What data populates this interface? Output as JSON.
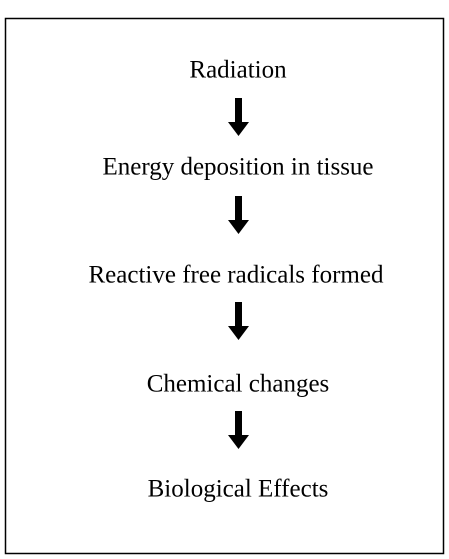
{
  "nodes": [
    {
      "label": "Radiation"
    },
    {
      "label": "Energy deposition in tissue"
    },
    {
      "label": "Reactive free radicals formed"
    },
    {
      "label": "Chemical changes"
    },
    {
      "label": "Biological Effects"
    }
  ]
}
